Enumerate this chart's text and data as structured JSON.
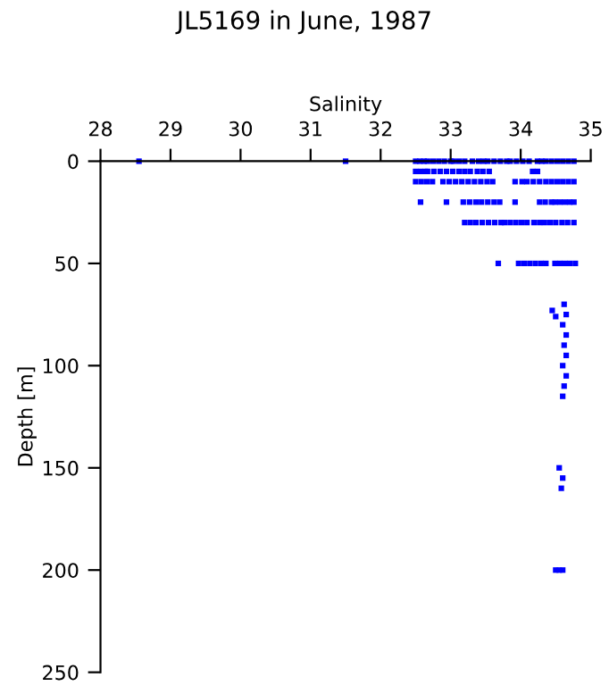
{
  "chart_data": {
    "type": "scatter",
    "title": "JL5169 in June, 1987",
    "xlabel": "Salinity",
    "ylabel": "Depth [m]",
    "xlim": [
      28,
      35
    ],
    "xticks": [
      28,
      29,
      30,
      31,
      32,
      33,
      34,
      35
    ],
    "ylim": [
      250,
      0
    ],
    "yticks": [
      0,
      50,
      100,
      150,
      200,
      250
    ],
    "grid": false,
    "legend": false,
    "marker": "square",
    "series": [
      {
        "color": "#0000ff",
        "x": [
          28.55,
          31.5,
          32.5,
          32.56,
          32.62,
          32.67,
          32.75,
          32.83,
          32.91,
          33.0,
          33.04,
          33.12,
          33.2,
          33.31,
          33.4,
          33.47,
          33.53,
          33.62,
          33.71,
          33.8,
          33.85,
          33.94,
          34.03,
          34.12,
          34.24,
          34.3,
          34.36,
          34.44,
          34.52,
          34.6,
          34.68,
          34.76,
          32.5,
          32.57,
          32.64,
          32.67,
          32.76,
          32.85,
          32.94,
          33.03,
          33.12,
          33.2,
          33.28,
          33.38,
          33.46,
          33.55,
          34.17,
          34.24,
          32.5,
          32.58,
          32.66,
          32.74,
          32.89,
          32.98,
          33.07,
          33.16,
          33.25,
          33.34,
          33.43,
          33.52,
          33.6,
          33.92,
          34.02,
          34.09,
          34.18,
          34.27,
          34.36,
          34.44,
          34.52,
          34.6,
          34.68,
          34.76,
          32.57,
          32.94,
          33.18,
          33.27,
          33.36,
          33.44,
          33.53,
          33.62,
          33.7,
          33.92,
          34.27,
          34.35,
          34.44,
          34.49,
          34.56,
          34.63,
          34.7,
          34.76,
          33.2,
          33.28,
          33.36,
          33.45,
          33.54,
          33.63,
          33.72,
          33.77,
          33.85,
          33.93,
          34.01,
          34.09,
          34.19,
          34.27,
          34.34,
          34.42,
          34.5,
          34.59,
          34.67,
          34.76,
          33.68,
          33.97,
          34.05,
          34.13,
          34.21,
          34.29,
          34.36,
          34.49,
          34.56,
          34.63,
          34.7,
          34.78,
          34.45,
          34.5,
          34.62,
          34.65,
          34.6,
          34.65,
          34.62,
          34.65,
          34.6,
          34.65,
          34.62,
          34.6,
          34.55,
          34.6,
          34.58,
          34.5,
          34.55,
          34.6
        ],
        "values": [
          0,
          0,
          0,
          0,
          0,
          0,
          0,
          0,
          0,
          0,
          0,
          0,
          0,
          0,
          0,
          0,
          0,
          0,
          0,
          0,
          0,
          0,
          0,
          0,
          0,
          0,
          0,
          0,
          0,
          0,
          0,
          0,
          5,
          5,
          5,
          5,
          5,
          5,
          5,
          5,
          5,
          5,
          5,
          5,
          5,
          5,
          5,
          5,
          10,
          10,
          10,
          10,
          10,
          10,
          10,
          10,
          10,
          10,
          10,
          10,
          10,
          10,
          10,
          10,
          10,
          10,
          10,
          10,
          10,
          10,
          10,
          10,
          20,
          20,
          20,
          20,
          20,
          20,
          20,
          20,
          20,
          20,
          20,
          20,
          20,
          20,
          20,
          20,
          20,
          20,
          30,
          30,
          30,
          30,
          30,
          30,
          30,
          30,
          30,
          30,
          30,
          30,
          30,
          30,
          30,
          30,
          30,
          30,
          30,
          30,
          50,
          50,
          50,
          50,
          50,
          50,
          50,
          50,
          50,
          50,
          50,
          50,
          73,
          76,
          70,
          75,
          80,
          85,
          90,
          95,
          100,
          105,
          110,
          115,
          150,
          155,
          160,
          200,
          200,
          200
        ]
      }
    ]
  }
}
